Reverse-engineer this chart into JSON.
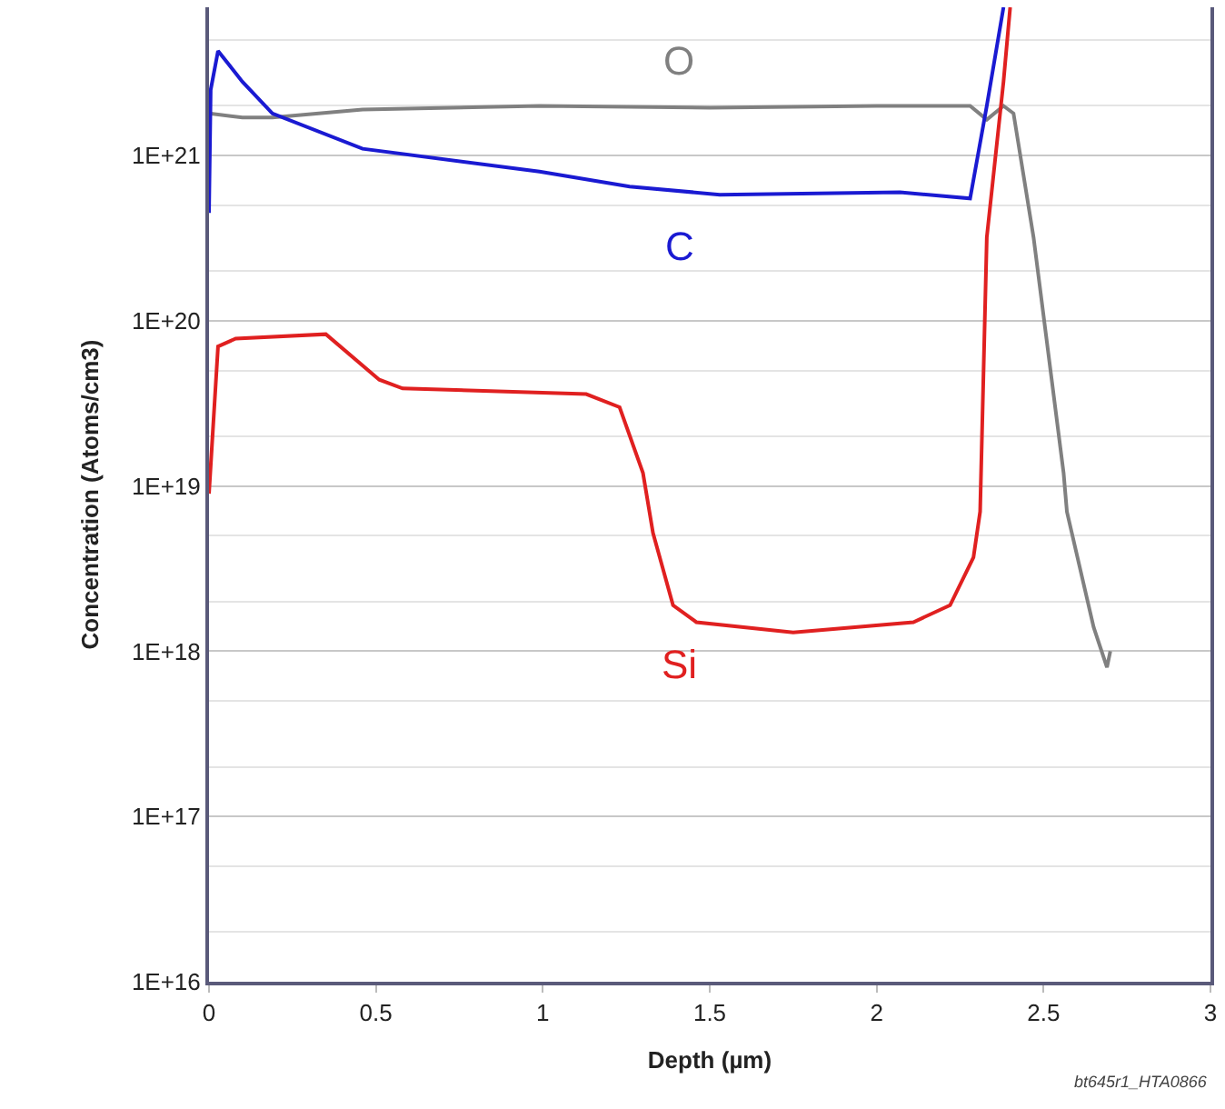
{
  "chart_data": {
    "type": "line",
    "xlabel": "Depth (µm)",
    "ylabel": "Concentration (Atoms/cm3)",
    "log": "y",
    "grid": "y",
    "legend": false,
    "line_style": "solid",
    "marker": "none",
    "xlim": [
      0,
      3
    ],
    "xticks": [
      0,
      0.5,
      1,
      1.5,
      2,
      2.5,
      3
    ],
    "ylim": [
      1e+16,
      7.9e+21
    ],
    "yticks": [
      {
        "value": 1e+16,
        "label": "1E+16"
      },
      {
        "value": 1e+17,
        "label": "1E+17"
      },
      {
        "value": 1e+18,
        "label": "1E+18"
      },
      {
        "value": 1e+19,
        "label": "1E+19"
      },
      {
        "value": 1e+20,
        "label": "1E+20"
      },
      {
        "value": 1e+21,
        "label": "1E+21"
      }
    ],
    "series": [
      {
        "name": "O",
        "color": "#808080",
        "x": [
          0,
          0.1,
          0.19,
          0.46,
          0.99,
          1.5,
          2.0,
          2.28,
          2.33,
          2.38,
          2.41,
          2.47,
          2.56,
          2.57,
          2.65,
          2.69,
          2.7
        ],
        "values": [
          1.8e+21,
          1.7e+21,
          1.7e+21,
          1.9e+21,
          2e+21,
          1.95e+21,
          2e+21,
          2e+21,
          1.65e+21,
          2e+21,
          1.8e+21,
          3.2e+20,
          1.2e+19,
          7e+18,
          1.4e+18,
          8e+17,
          1e+18
        ]
      },
      {
        "name": "C",
        "color": "#1a1ad2",
        "x": [
          0,
          0.005,
          0.027,
          0.1,
          0.19,
          0.46,
          0.99,
          1.26,
          1.53,
          2.07,
          2.28,
          2.33,
          2.38
        ],
        "values": [
          4.5e+20,
          2.5e+21,
          4.3e+21,
          2.8e+21,
          1.8e+21,
          1.1e+21,
          8e+20,
          6.5e+20,
          5.8e+20,
          6e+20,
          5.5e+20,
          2e+21,
          7.9e+21
        ]
      },
      {
        "name": "Si",
        "color": "#e02020",
        "x": [
          0,
          0.027,
          0.08,
          0.35,
          0.51,
          0.58,
          1.13,
          1.23,
          1.3,
          1.33,
          1.39,
          1.46,
          1.75,
          2.11,
          2.22,
          2.29,
          2.31,
          2.33,
          2.38,
          2.4
        ],
        "values": [
          9e+18,
          7e+19,
          7.8e+19,
          8.3e+19,
          4.4e+19,
          3.9e+19,
          3.6e+19,
          3e+19,
          1.2e+19,
          5.2e+18,
          1.9e+18,
          1.5e+18,
          1.3e+18,
          1.5e+18,
          1.9e+18,
          3.7e+18,
          7e+18,
          3.2e+20,
          2.8e+21,
          7.9e+21
        ]
      }
    ],
    "annotations": [
      "bt645r1_HTA0866"
    ]
  }
}
